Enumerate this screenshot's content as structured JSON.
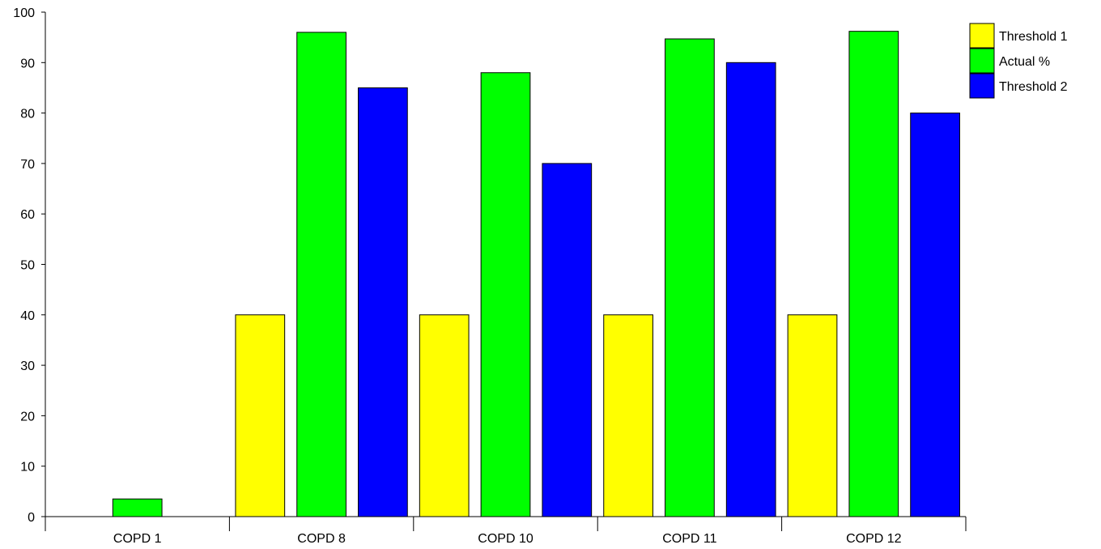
{
  "chart_data": {
    "type": "bar",
    "categories": [
      "COPD 1",
      "COPD 8",
      "COPD 10",
      "COPD 11",
      "COPD 12"
    ],
    "series": [
      {
        "name": "Threshold 1",
        "color": "#ffff00",
        "values": [
          null,
          40,
          40,
          40,
          40
        ]
      },
      {
        "name": "Actual %",
        "color": "#00ff00",
        "values": [
          3.5,
          96,
          88,
          94.7,
          96.2
        ]
      },
      {
        "name": "Threshold 2",
        "color": "#0000ff",
        "values": [
          null,
          85,
          70,
          90,
          80
        ]
      }
    ],
    "yticks": [
      "0",
      "10",
      "20",
      "30",
      "40",
      "50",
      "60",
      "70",
      "80",
      "90",
      "100"
    ],
    "ylim": [
      0,
      100
    ],
    "grid": false,
    "legend_position": "top-right"
  }
}
